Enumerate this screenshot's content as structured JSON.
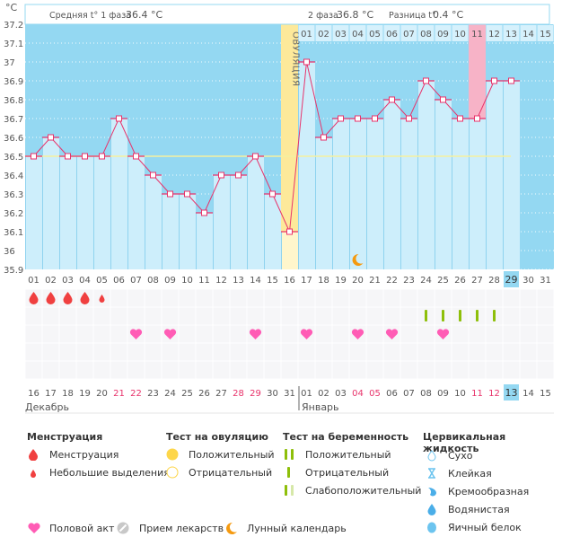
{
  "header": {
    "unit": "°C",
    "phase1_label": "Средняя t° 1 фаза",
    "phase1_value": "36.4 °C",
    "phase2_label": "2 фаза",
    "phase2_value": "36.8 °C",
    "diff_label": "Разница t°",
    "diff_value": "0.4 °C",
    "ovulation_label": "ОВУЛЯЦИЯ"
  },
  "colors": {
    "sky": "#94d8f2",
    "bar": "#cdeefb",
    "line": "#e8336b",
    "ovulation": "#fde99a",
    "period_highlight": "#f7b3c7",
    "coverline": "#f5f0a0",
    "heart": "#ff5cb5",
    "drop": "#f04040",
    "preg_test": "#8ebf0a",
    "moon": "#f59a10",
    "today": "#94d8f2"
  },
  "chart_data": {
    "type": "line",
    "title": "",
    "ylabel": "°C",
    "ylim": [
      35.9,
      37.2
    ],
    "yticks": [
      "37.2",
      "37.1",
      "37",
      "36.9",
      "36.8",
      "36.7",
      "36.6",
      "36.5",
      "36.4",
      "36.3",
      "36.2",
      "36.1",
      "36",
      "35.9"
    ],
    "cycle_days": [
      "01",
      "02",
      "03",
      "04",
      "05",
      "06",
      "07",
      "08",
      "09",
      "10",
      "11",
      "12",
      "13",
      "14",
      "15",
      "16",
      "17",
      "18",
      "19",
      "20",
      "21",
      "22",
      "23",
      "24",
      "25",
      "26",
      "27",
      "28",
      "29",
      "30",
      "31"
    ],
    "top_day_labels": [
      "01",
      "02",
      "03",
      "04",
      "05",
      "06",
      "07",
      "08",
      "09",
      "10",
      "11",
      "12",
      "13",
      "14",
      "15"
    ],
    "dates": [
      "16",
      "17",
      "18",
      "19",
      "20",
      "21",
      "22",
      "23",
      "24",
      "25",
      "26",
      "27",
      "28",
      "29",
      "30",
      "31",
      "01",
      "02",
      "03",
      "04",
      "05",
      "06",
      "07",
      "08",
      "09",
      "10",
      "11",
      "12",
      "13",
      "14",
      "15"
    ],
    "red_dates_idx": [
      5,
      6,
      12,
      13,
      19,
      20,
      26,
      27
    ],
    "months": [
      "Декабрь",
      "Январь"
    ],
    "series": [
      {
        "name": "Базальная температура",
        "values": [
          36.5,
          36.6,
          36.5,
          36.5,
          36.5,
          36.7,
          36.5,
          36.4,
          36.3,
          36.3,
          36.2,
          36.4,
          36.4,
          36.5,
          36.3,
          36.1,
          37.0,
          36.6,
          36.7,
          36.7,
          36.7,
          36.8,
          36.7,
          36.9,
          36.8,
          36.7,
          36.7,
          36.9,
          36.9
        ]
      }
    ],
    "coverline": 36.5,
    "ovulation_day": 16,
    "highlight_day": 27,
    "today_day": 29,
    "menstruation": [
      {
        "day": 1,
        "type": "heavy"
      },
      {
        "day": 2,
        "type": "heavy"
      },
      {
        "day": 3,
        "type": "heavy"
      },
      {
        "day": 4,
        "type": "heavy"
      },
      {
        "day": 5,
        "type": "light"
      }
    ],
    "pregnancy_tests": [
      24,
      25,
      26,
      27,
      28
    ],
    "intercourse": [
      7,
      9,
      14,
      17,
      20,
      22,
      25
    ],
    "moon_day": 20
  },
  "legend": {
    "menstruation": {
      "title": "Менструация",
      "items": [
        "Менструация",
        "Небольшие выделения"
      ]
    },
    "ovulation_test": {
      "title": "Тест на овуляцию",
      "items": [
        "Положительный",
        "Отрицательный"
      ]
    },
    "pregnancy_test": {
      "title": "Тест на беременность",
      "items": [
        "Положительный",
        "Отрицательный",
        "Слабоположительный"
      ]
    },
    "cervical": {
      "title": "Цервикальная жидкость",
      "items": [
        "Сухо",
        "Клейкая",
        "Кремообразная",
        "Водянистая",
        "Яичный белок"
      ]
    },
    "other": [
      "Половой акт",
      "Прием лекарств",
      "Лунный календарь"
    ]
  }
}
